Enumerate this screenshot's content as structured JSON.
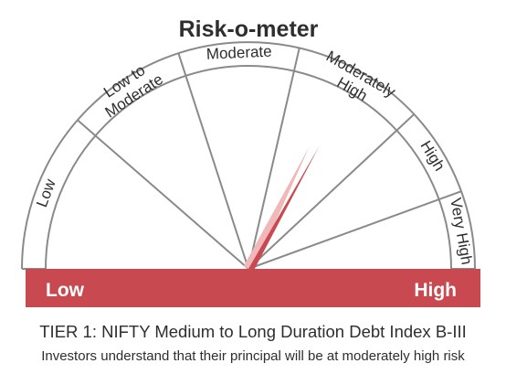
{
  "title": "Risk-o-meter",
  "segments": [
    {
      "lines": [
        "Low"
      ]
    },
    {
      "lines": [
        "Low to",
        "Moderate"
      ]
    },
    {
      "lines": [
        "Moderate"
      ]
    },
    {
      "lines": [
        "Moderately",
        "High"
      ]
    },
    {
      "lines": [
        "High"
      ]
    },
    {
      "lines": [
        "Very High"
      ]
    }
  ],
  "scale": {
    "low_label": "Low",
    "high_label": "High"
  },
  "indicator": {
    "level": "Moderately High",
    "segment_index": 3
  },
  "caption": {
    "line1": "TIER 1: NIFTY Medium to Long Duration Debt Index B-III",
    "line2": "Investors understand that their principal will be at moderately high risk"
  },
  "colors": {
    "accent": "#c8494f",
    "accent_light": "#f1b8ba",
    "line": "#8a8a8a",
    "text": "#2e2e2e"
  }
}
